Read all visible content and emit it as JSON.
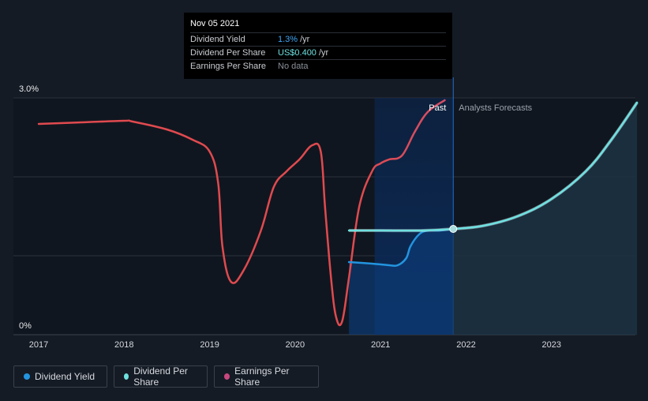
{
  "colors": {
    "background": "#151b24",
    "dividend_yield": "#2394df",
    "dividend_per_share": "#6ee0df",
    "earnings_per_share": "#e04a4f",
    "earnings_legend": "#c8477e",
    "forecast_fill": "#1c3244",
    "past_band": "#0b2a57"
  },
  "tooltip": {
    "date": "Nov 05 2021",
    "rows": [
      {
        "label": "Dividend Yield",
        "value": "1.3%",
        "unit": "/yr",
        "color": "#3fa7f5"
      },
      {
        "label": "Dividend Per Share",
        "value": "US$0.400",
        "unit": "/yr",
        "color": "#6ee0df"
      },
      {
        "label": "Earnings Per Share",
        "value": "No data",
        "unit": "",
        "color": "#8a9099"
      }
    ]
  },
  "legend": [
    {
      "label": "Dividend Yield",
      "color": "#2394df"
    },
    {
      "label": "Dividend Per Share",
      "color": "#6ee0df"
    },
    {
      "label": "Earnings Per Share",
      "color": "#c8477e"
    }
  ],
  "chart_data": {
    "type": "line",
    "title": "",
    "xlabel": "",
    "ylabel": "",
    "x_ticks": [
      "2017",
      "2018",
      "2019",
      "2020",
      "2021",
      "2022",
      "2023"
    ],
    "xlim": [
      2016.7,
      2024.0
    ],
    "y_ticks": [
      "3.0%",
      "0%"
    ],
    "ylim": [
      0,
      3.0
    ],
    "grid": true,
    "annotations": {
      "past": "Past",
      "forecast": "Analysts Forecasts"
    },
    "past_region": [
      2020.93,
      2021.85
    ],
    "forecast_start": 2021.85,
    "highlight_point": {
      "x": 2021.85,
      "y": 1.22,
      "series": "Dividend Per Share"
    },
    "series": [
      {
        "name": "Earnings Per Share",
        "points": [
          [
            2017.0,
            2.55
          ],
          [
            2017.5,
            2.57
          ],
          [
            2018.0,
            2.59
          ],
          [
            2018.1,
            2.58
          ],
          [
            2018.5,
            2.48
          ],
          [
            2018.8,
            2.35
          ],
          [
            2019.0,
            2.2
          ],
          [
            2019.1,
            1.8
          ],
          [
            2019.15,
            1.0
          ],
          [
            2019.25,
            0.55
          ],
          [
            2019.4,
            0.7
          ],
          [
            2019.6,
            1.2
          ],
          [
            2019.75,
            1.75
          ],
          [
            2019.9,
            1.95
          ],
          [
            2020.05,
            2.1
          ],
          [
            2020.2,
            2.28
          ],
          [
            2020.3,
            2.2
          ],
          [
            2020.35,
            1.5
          ],
          [
            2020.42,
            0.6
          ],
          [
            2020.48,
            0.1
          ],
          [
            2020.55,
            0.05
          ],
          [
            2020.63,
            0.6
          ],
          [
            2020.75,
            1.5
          ],
          [
            2020.9,
            1.95
          ],
          [
            2021.0,
            2.05
          ],
          [
            2021.1,
            2.1
          ],
          [
            2021.25,
            2.15
          ],
          [
            2021.4,
            2.45
          ],
          [
            2021.55,
            2.7
          ],
          [
            2021.75,
            2.85
          ]
        ]
      },
      {
        "name": "Dividend Per Share",
        "points": [
          [
            2020.63,
            1.2
          ],
          [
            2021.0,
            1.2
          ],
          [
            2021.5,
            1.2
          ],
          [
            2021.85,
            1.22
          ],
          [
            2022.2,
            1.26
          ],
          [
            2022.6,
            1.38
          ],
          [
            2023.0,
            1.6
          ],
          [
            2023.4,
            1.95
          ],
          [
            2023.7,
            2.35
          ],
          [
            2024.0,
            2.82
          ]
        ]
      },
      {
        "name": "Dividend Yield",
        "points": [
          [
            2020.63,
            0.8
          ],
          [
            2020.9,
            0.78
          ],
          [
            2021.1,
            0.76
          ],
          [
            2021.2,
            0.76
          ],
          [
            2021.3,
            0.85
          ],
          [
            2021.35,
            1.0
          ],
          [
            2021.45,
            1.15
          ],
          [
            2021.55,
            1.2
          ],
          [
            2021.7,
            1.2
          ],
          [
            2021.85,
            1.22
          ],
          [
            2022.2,
            1.26
          ],
          [
            2022.6,
            1.38
          ],
          [
            2023.0,
            1.6
          ],
          [
            2023.4,
            1.95
          ],
          [
            2023.7,
            2.35
          ],
          [
            2024.0,
            2.82
          ]
        ]
      }
    ]
  }
}
